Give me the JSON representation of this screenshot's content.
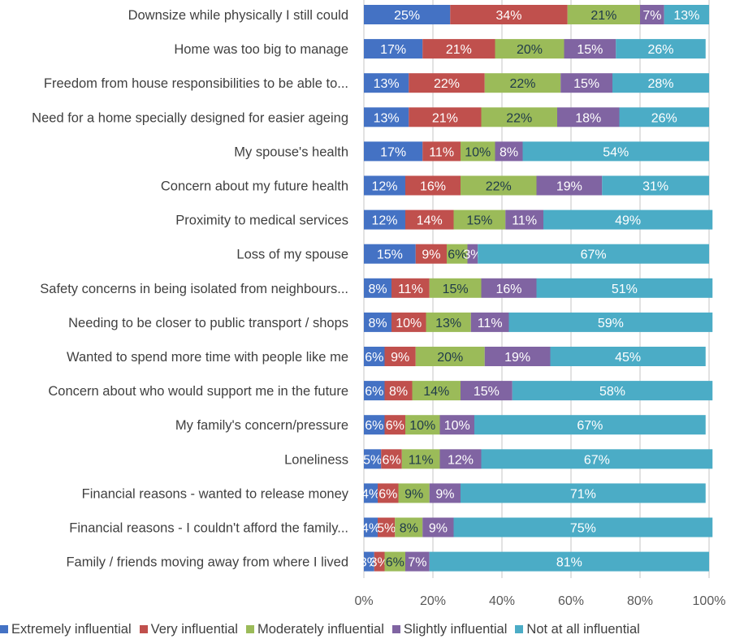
{
  "chart_data": {
    "type": "bar",
    "orientation": "horizontal",
    "stacked": true,
    "title": "",
    "xlabel": "",
    "ylabel": "",
    "xlim": [
      0,
      100
    ],
    "x_ticks": [
      "0%",
      "20%",
      "40%",
      "60%",
      "80%",
      "100%"
    ],
    "grid": true,
    "legend_position": "bottom",
    "categories": [
      "Downsize while physically I still could",
      "Home was too big to manage",
      "Freedom from house responsibilities to be able to...",
      "Need for a home specially designed for easier ageing",
      "My spouse's health",
      "Concern about my future health",
      "Proximity to medical services",
      "Loss of my spouse",
      "Safety concerns in being isolated from neighbours...",
      "Needing to be closer to public transport / shops",
      "Wanted to spend more time with people like me",
      "Concern about who would support me in the future",
      "My family's concern/pressure",
      "Loneliness",
      "Financial reasons - wanted to release money",
      "Financial reasons - I couldn't afford the family...",
      "Family / friends moving away from where I lived"
    ],
    "series": [
      {
        "name": "Extremely influential",
        "color": "#4472C4",
        "label_color": "#ffffff",
        "values": [
          25,
          17,
          13,
          13,
          17,
          12,
          12,
          15,
          8,
          8,
          6,
          6,
          6,
          5,
          4,
          4,
          3
        ]
      },
      {
        "name": "Very influential",
        "color": "#C0504D",
        "label_color": "#ffffff",
        "values": [
          34,
          21,
          22,
          21,
          11,
          16,
          14,
          9,
          11,
          10,
          9,
          8,
          6,
          6,
          6,
          5,
          3
        ]
      },
      {
        "name": "Moderately influential",
        "color": "#9BBB59",
        "label_color": "#1F3A4A",
        "values": [
          21,
          20,
          22,
          22,
          10,
          22,
          15,
          6,
          15,
          13,
          20,
          14,
          10,
          11,
          9,
          8,
          6
        ]
      },
      {
        "name": "Slightly influential",
        "color": "#8064A2",
        "label_color": "#ffffff",
        "values": [
          7,
          15,
          15,
          18,
          8,
          19,
          11,
          3,
          16,
          11,
          19,
          15,
          10,
          12,
          9,
          9,
          7
        ]
      },
      {
        "name": "Not at all influential",
        "color": "#4BACC6",
        "label_color": "#ffffff",
        "values": [
          13,
          26,
          28,
          26,
          54,
          31,
          49,
          67,
          51,
          59,
          45,
          58,
          67,
          67,
          71,
          75,
          81
        ]
      }
    ]
  }
}
